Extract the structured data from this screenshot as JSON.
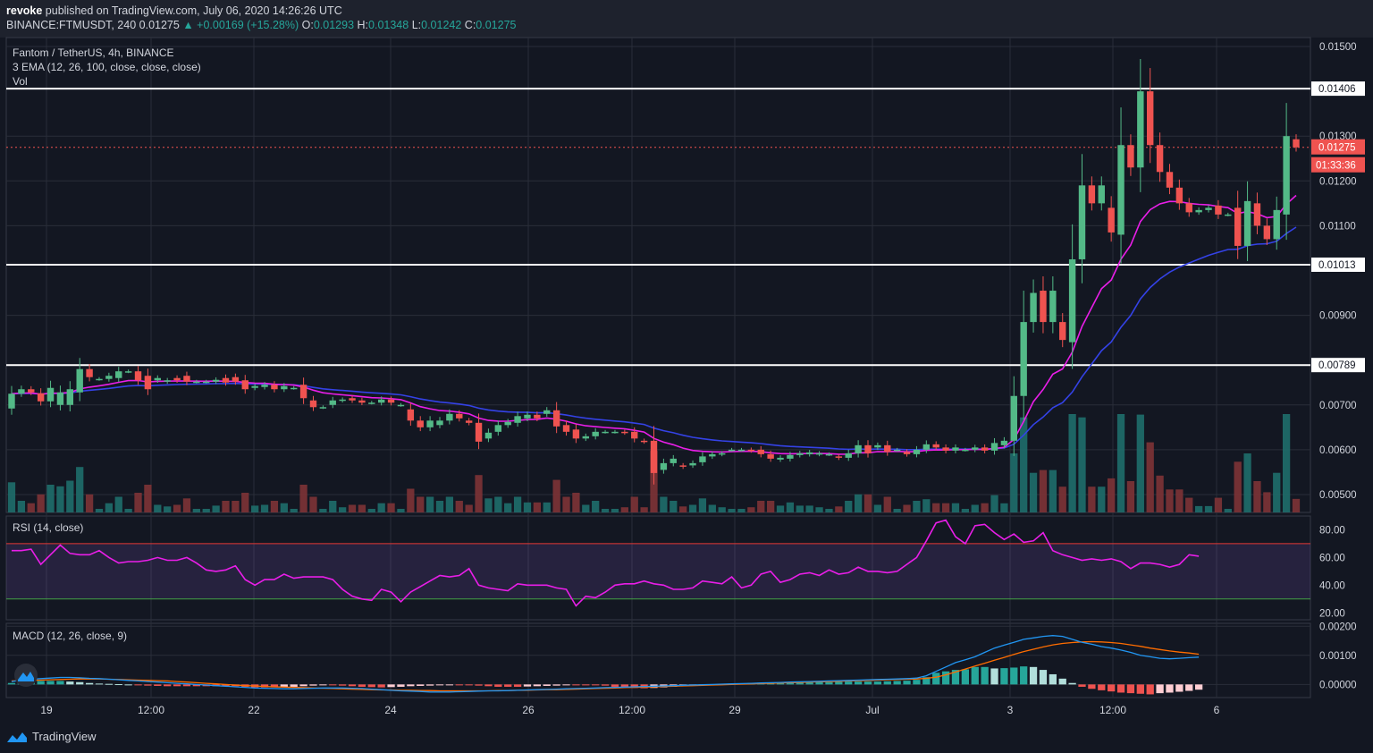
{
  "header": {
    "publisher": "revoke",
    "published_text": "published on TradingView.com, July 06, 2020 14:26:26 UTC",
    "symbol": "BINANCE:FTMUSDT, 240",
    "last": "0.01275",
    "change": "▲ +0.00169 (+15.28%)",
    "o_label": "O:",
    "o": "0.01293",
    "h_label": "H:",
    "h": "0.01348",
    "l_label": "L:",
    "l": "0.01242",
    "c_label": "C:",
    "c": "0.01275"
  },
  "legends": {
    "main_title": "Fantom / TetherUS, 4h, BINANCE",
    "ema": "3 EMA (12, 26, 100, close, close, close)",
    "vol": "Vol",
    "rsi": "RSI (14, close)",
    "macd": "MACD (12, 26, close, 9)"
  },
  "footer": {
    "brand": "TradingView"
  },
  "colors": {
    "bull": "#26a69a",
    "bull_candle": "#53b987",
    "bear": "#ef5350",
    "ema_fast": "#e91ee8",
    "ema_slow": "#3442e6",
    "rsi": "#e91ee8",
    "macd": "#2196f3",
    "signal": "#ff6d00",
    "levels": "#ffffff"
  },
  "chart_data": [
    {
      "type": "candlestick",
      "title": "Fantom / TetherUS, 4h, BINANCE",
      "x_ticks": [
        "19",
        "12:00",
        "22",
        "24",
        "26",
        "12:00",
        "29",
        "Jul",
        "3",
        "12:00",
        "6"
      ],
      "y_ticks": [
        "0.01500",
        "0.01300",
        "0.01200",
        "0.01100",
        "0.00900",
        "0.00700",
        "0.00600",
        "0.00500"
      ],
      "ylim": [
        0.0046,
        0.0152
      ],
      "horizontal_levels": [
        "0.01406",
        "0.01013",
        "0.00789"
      ],
      "current_price_label": "0.01275",
      "countdown_label": "01:33:36",
      "candles": [
        [
          0.00692,
          0.00725
        ],
        [
          0.00725,
          0.00735
        ],
        [
          0.00735,
          0.00728
        ],
        [
          0.00726,
          0.00708
        ],
        [
          0.00708,
          0.00738
        ],
        [
          0.007,
          0.00728
        ],
        [
          0.007,
          0.00735
        ],
        [
          0.00728,
          0.0078
        ],
        [
          0.0078,
          0.00762
        ],
        [
          0.00758,
          0.00758
        ],
        [
          0.00758,
          0.00765
        ],
        [
          0.0076,
          0.00775
        ],
        [
          0.00775,
          0.00775
        ],
        [
          0.00775,
          0.00755
        ],
        [
          0.00765,
          0.00735
        ],
        [
          0.00755,
          0.0076
        ],
        [
          0.00752,
          0.00755
        ],
        [
          0.0076,
          0.00755
        ],
        [
          0.00765,
          0.00752
        ],
        [
          0.00752,
          0.00752
        ],
        [
          0.00752,
          0.00752
        ],
        [
          0.00752,
          0.00756
        ],
        [
          0.0076,
          0.0075
        ],
        [
          0.00762,
          0.00752
        ],
        [
          0.00755,
          0.00735
        ],
        [
          0.00738,
          0.00742
        ],
        [
          0.0074,
          0.00745
        ],
        [
          0.00745,
          0.00735
        ],
        [
          0.00735,
          0.00742
        ],
        [
          0.00738,
          0.00738
        ],
        [
          0.00745,
          0.00715
        ],
        [
          0.0071,
          0.00695
        ],
        [
          0.00695,
          0.00695
        ],
        [
          0.007,
          0.0071
        ],
        [
          0.0071,
          0.00712
        ],
        [
          0.00715,
          0.0071
        ],
        [
          0.0071,
          0.00705
        ],
        [
          0.00705,
          0.00705
        ],
        [
          0.00705,
          0.00712
        ],
        [
          0.00712,
          0.00705
        ],
        [
          0.007,
          0.007
        ],
        [
          0.0069,
          0.00665
        ],
        [
          0.00665,
          0.0065
        ],
        [
          0.0065,
          0.00665
        ],
        [
          0.00655,
          0.00665
        ],
        [
          0.00665,
          0.0068
        ],
        [
          0.0068,
          0.0067
        ],
        [
          0.00665,
          0.0066
        ],
        [
          0.0066,
          0.00618
        ],
        [
          0.00625,
          0.00638
        ],
        [
          0.0064,
          0.00655
        ],
        [
          0.00655,
          0.00662
        ],
        [
          0.0066,
          0.00675
        ],
        [
          0.0067,
          0.00678
        ],
        [
          0.00678,
          0.0067
        ],
        [
          0.0068,
          0.00688
        ],
        [
          0.00688,
          0.00652
        ],
        [
          0.00655,
          0.0064
        ],
        [
          0.00645,
          0.00625
        ],
        [
          0.00625,
          0.0063
        ],
        [
          0.0063,
          0.0064
        ],
        [
          0.0064,
          0.0064
        ],
        [
          0.0064,
          0.0064
        ],
        [
          0.0064,
          0.00638
        ],
        [
          0.0064,
          0.00625
        ],
        [
          0.0062,
          0.00618
        ],
        [
          0.0062,
          0.00548
        ],
        [
          0.00555,
          0.0057
        ],
        [
          0.0057,
          0.0058
        ],
        [
          0.00565,
          0.00562
        ],
        [
          0.00565,
          0.0057
        ],
        [
          0.00572,
          0.00585
        ],
        [
          0.00585,
          0.0059
        ],
        [
          0.0059,
          0.00592
        ],
        [
          0.006,
          0.006
        ],
        [
          0.006,
          0.006
        ],
        [
          0.006,
          0.00598
        ],
        [
          0.006,
          0.0059
        ],
        [
          0.0059,
          0.0058
        ],
        [
          0.00578,
          0.00582
        ],
        [
          0.0058,
          0.00588
        ],
        [
          0.00588,
          0.00592
        ],
        [
          0.0059,
          0.00594
        ],
        [
          0.0059,
          0.00592
        ],
        [
          0.0059,
          0.0059
        ],
        [
          0.00585,
          0.00582
        ],
        [
          0.00582,
          0.00592
        ],
        [
          0.00592,
          0.0061
        ],
        [
          0.0061,
          0.00592
        ],
        [
          0.00605,
          0.0061
        ],
        [
          0.0061,
          0.00595
        ],
        [
          0.006,
          0.006
        ],
        [
          0.00595,
          0.0059
        ],
        [
          0.0059,
          0.006
        ],
        [
          0.006,
          0.00612
        ],
        [
          0.00612,
          0.00605
        ],
        [
          0.00605,
          0.00598
        ],
        [
          0.00598,
          0.00605
        ],
        [
          0.006,
          0.006
        ],
        [
          0.006,
          0.00605
        ],
        [
          0.00605,
          0.00598
        ],
        [
          0.00598,
          0.00615
        ],
        [
          0.0061,
          0.0062
        ],
        [
          0.0062,
          0.0072
        ],
        [
          0.0072,
          0.00885
        ],
        [
          0.00885,
          0.0095
        ],
        [
          0.00955,
          0.00885
        ],
        [
          0.00885,
          0.00955
        ],
        [
          0.00885,
          0.00845
        ],
        [
          0.0084,
          0.01025
        ],
        [
          0.01025,
          0.0119
        ],
        [
          0.0119,
          0.0115
        ],
        [
          0.0115,
          0.0119
        ],
        [
          0.0114,
          0.01085
        ],
        [
          0.0108,
          0.0128
        ],
        [
          0.0128,
          0.0123
        ],
        [
          0.0123,
          0.014
        ],
        [
          0.014,
          0.0128
        ],
        [
          0.0128,
          0.0122
        ],
        [
          0.0122,
          0.01185
        ],
        [
          0.01185,
          0.0115
        ],
        [
          0.0115,
          0.0113
        ],
        [
          0.0113,
          0.01135
        ],
        [
          0.01135,
          0.0114
        ],
        [
          0.01145,
          0.01125
        ],
        [
          0.01125,
          0.01125
        ],
        [
          0.0114,
          0.01055
        ],
        [
          0.01055,
          0.01155
        ],
        [
          0.0115,
          0.011
        ],
        [
          0.011,
          0.0107
        ],
        [
          0.0107,
          0.01135
        ],
        [
          0.01125,
          0.013
        ],
        [
          0.01293,
          0.01275
        ]
      ],
      "ema_fast_label": "EMA 12",
      "ema_slow_label": "EMA 26",
      "volume_series_label": "Vol"
    },
    {
      "type": "line",
      "title": "RSI (14, close)",
      "y_ticks": [
        "80.00",
        "60.00",
        "40.00",
        "20.00"
      ],
      "ylim": [
        15,
        90
      ],
      "bands": {
        "upper": 70,
        "lower": 30
      },
      "values": [
        65,
        65,
        66,
        55,
        62,
        69,
        63,
        62,
        62,
        65,
        60,
        56,
        57,
        57,
        58,
        60,
        58,
        58,
        60,
        56,
        51,
        50,
        51,
        54,
        44,
        40,
        44,
        44,
        48,
        45,
        46,
        46,
        46,
        44,
        37,
        32,
        30,
        29,
        37,
        35,
        28,
        35,
        39,
        43,
        47,
        46,
        47,
        52,
        40,
        38,
        37,
        36,
        41,
        40,
        40,
        40,
        38,
        37,
        25,
        32,
        31,
        35,
        40,
        41,
        41,
        43,
        41,
        40,
        37,
        37,
        38,
        43,
        42,
        41,
        46,
        38,
        40,
        48,
        50,
        42,
        44,
        48,
        49,
        47,
        51,
        48,
        49,
        53,
        50,
        50,
        49,
        50,
        55,
        60,
        72,
        85,
        87,
        75,
        70,
        83,
        84,
        78,
        73,
        77,
        71,
        72,
        78,
        65,
        62,
        60,
        58,
        59,
        58,
        59,
        57,
        52,
        56,
        56,
        55,
        53,
        55,
        62,
        61
      ]
    },
    {
      "type": "bar",
      "title": "MACD (12, 26, close, 9)",
      "y_ticks": [
        "0.00200",
        "0.00100",
        "0.00000"
      ],
      "ylim": [
        -0.00045,
        0.0021
      ],
      "histogram": [
        5e-05,
        8e-05,
        0.0001,
        0.00012,
        0.00012,
        0.00012,
        0.0001,
        8e-05,
        5e-05,
        3e-05,
        2e-05,
        1e-05,
        0.0,
        -2e-05,
        -4e-05,
        -5e-05,
        -6e-05,
        -6e-05,
        -6e-05,
        -6e-05,
        -6e-05,
        -6e-05,
        -6e-05,
        -6e-05,
        -8e-05,
        -0.0001,
        -0.0001,
        -0.0001,
        -9e-05,
        -8e-05,
        -6e-05,
        -4e-05,
        -3e-05,
        -3e-05,
        -4e-05,
        -6e-05,
        -8e-05,
        -9e-05,
        -0.0001,
        -9e-05,
        -8e-05,
        -6e-05,
        -5e-05,
        -4e-05,
        -3e-05,
        -2e-05,
        -2e-05,
        -3e-05,
        -4e-05,
        -6e-05,
        -8e-05,
        -8e-05,
        -8e-05,
        -7e-05,
        -6e-05,
        -5e-05,
        -4e-05,
        -2e-05,
        -2e-05,
        -2e-05,
        -2e-05,
        -4e-05,
        -8e-05,
        -0.0001,
        -0.00012,
        -0.00013,
        -0.00012,
        -0.0001,
        -8e-05,
        -6e-05,
        -4e-05,
        -2e-05,
        0.0,
        2e-05,
        3e-05,
        4e-05,
        5e-05,
        6e-05,
        6e-05,
        6e-05,
        6e-05,
        6e-05,
        7e-05,
        8e-05,
        8e-05,
        9e-05,
        0.0001,
        0.0001,
        0.0001,
        0.0001,
        0.00011,
        0.00012,
        0.00013,
        0.00016,
        0.00025,
        0.0004,
        0.00045,
        0.0005,
        0.00052,
        0.0006,
        0.0006,
        0.00055,
        0.00056,
        0.00058,
        0.00062,
        0.0006,
        0.0005,
        0.00035,
        0.0002,
        5e-05,
        -8e-05,
        -0.00015,
        -0.0002,
        -0.00024,
        -0.00028,
        -0.0003,
        -0.00032,
        -0.00034,
        -0.0003,
        -0.00028,
        -0.00025,
        -0.00022,
        -0.00018
      ],
      "macd_line": [
        0.0001,
        0.00015,
        0.00018,
        0.0002,
        0.00022,
        0.00024,
        0.00024,
        0.00023,
        0.00021,
        0.0002,
        0.00018,
        0.00016,
        0.00014,
        0.00012,
        0.0001,
        8e-05,
        6e-05,
        4e-05,
        2e-05,
        0.0,
        -2e-05,
        -4e-05,
        -6e-05,
        -8e-05,
        -0.0001,
        -0.00012,
        -0.00013,
        -0.00014,
        -0.00015,
        -0.00015,
        -0.00014,
        -0.00013,
        -0.00012,
        -0.00012,
        -0.00012,
        -0.00013,
        -0.00014,
        -0.00016,
        -0.00018,
        -0.0002,
        -0.00022,
        -0.00023,
        -0.00024,
        -0.00026,
        -0.00026,
        -0.00026,
        -0.00025,
        -0.00024,
        -0.00023,
        -0.00022,
        -0.00022,
        -0.00021,
        -0.0002,
        -0.00019,
        -0.00018,
        -0.00017,
        -0.00016,
        -0.00015,
        -0.00014,
        -0.00013,
        -0.00012,
        -0.00011,
        -0.0001,
        -9e-05,
        -8e-05,
        -7e-05,
        -6e-05,
        -5e-05,
        -4e-05,
        -3e-05,
        -2e-05,
        -1e-05,
        0.0,
        1e-05,
        2e-05,
        3e-05,
        4e-05,
        5e-05,
        6e-05,
        7e-05,
        8e-05,
        9e-05,
        0.0001,
        0.00011,
        0.00012,
        0.00013,
        0.00014,
        0.00015,
        0.00016,
        0.00017,
        0.00018,
        0.00019,
        0.0002,
        0.00022,
        0.0003,
        0.00045,
        0.0006,
        0.00075,
        0.00085,
        0.00095,
        0.0011,
        0.00125,
        0.00135,
        0.00145,
        0.00155,
        0.0016,
        0.00165,
        0.00168,
        0.00165,
        0.00155,
        0.00145,
        0.00138,
        0.0013,
        0.00125,
        0.00118,
        0.0011,
        0.001,
        0.00095,
        0.0009,
        0.00088,
        0.0009,
        0.00092,
        0.00094
      ],
      "signal_line": [
        0.00012,
        0.00013,
        0.00014,
        0.00015,
        0.00016,
        0.00017,
        0.00018,
        0.00019,
        0.00019,
        0.00019,
        0.00018,
        0.00017,
        0.00016,
        0.00015,
        0.00014,
        0.00013,
        0.00012,
        0.0001,
        8e-05,
        6e-05,
        4e-05,
        2e-05,
        0.0,
        -2e-05,
        -4e-05,
        -5e-05,
        -7e-05,
        -8e-05,
        -9e-05,
        -0.0001,
        -0.00011,
        -0.00012,
        -0.00013,
        -0.00014,
        -0.00015,
        -0.00016,
        -0.00017,
        -0.00018,
        -0.00019,
        -0.00019,
        -0.0002,
        -0.0002,
        -0.00021,
        -0.00021,
        -0.00022,
        -0.00022,
        -0.00022,
        -0.00022,
        -0.00022,
        -0.00022,
        -0.00021,
        -0.00021,
        -0.0002,
        -0.0002,
        -0.00019,
        -0.00018,
        -0.00018,
        -0.00017,
        -0.00016,
        -0.00015,
        -0.00014,
        -0.00013,
        -0.00012,
        -0.00011,
        -0.0001,
        -9e-05,
        -8e-05,
        -7e-05,
        -6e-05,
        -5e-05,
        -4e-05,
        -3e-05,
        -2e-05,
        -1e-05,
        0.0,
        1e-05,
        2e-05,
        3e-05,
        4e-05,
        5e-05,
        6e-05,
        7e-05,
        8e-05,
        9e-05,
        0.0001,
        0.00011,
        0.00012,
        0.00013,
        0.00014,
        0.00015,
        0.00016,
        0.00017,
        0.00018,
        0.00019,
        0.00021,
        0.00025,
        0.00033,
        0.00043,
        0.00053,
        0.00063,
        0.00073,
        0.00083,
        0.00093,
        0.00103,
        0.00113,
        0.00121,
        0.00129,
        0.00136,
        0.00141,
        0.00144,
        0.00146,
        0.00147,
        0.00146,
        0.00144,
        0.00141,
        0.00136,
        0.00131,
        0.00125,
        0.0012,
        0.00115,
        0.00111,
        0.00108,
        0.00104
      ]
    }
  ]
}
